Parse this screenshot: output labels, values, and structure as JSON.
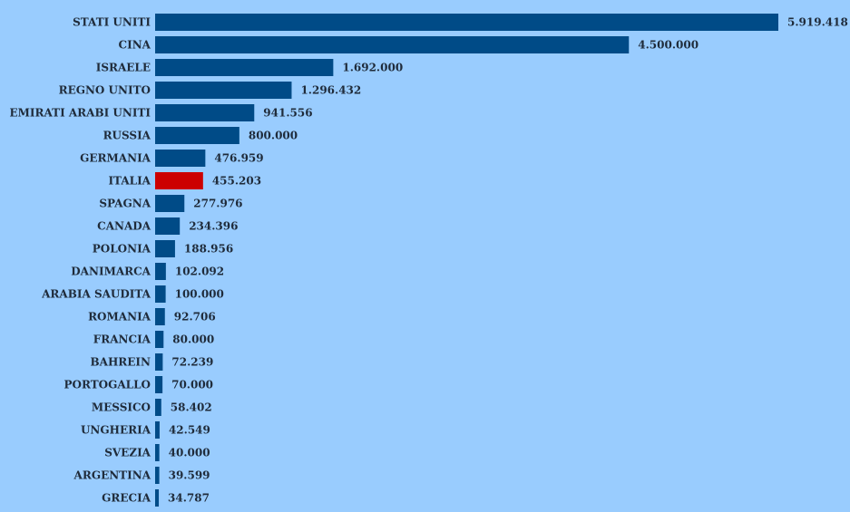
{
  "chart_data": {
    "type": "bar",
    "orientation": "horizontal",
    "title": "",
    "xlabel": "",
    "ylabel": "",
    "categories": [
      "STATI UNITI",
      "CINA",
      "ISRAELE",
      "REGNO UNITO",
      "EMIRATI ARABI UNITI",
      "RUSSIA",
      "GERMANIA",
      "ITALIA",
      "SPAGNA",
      "CANADA",
      "POLONIA",
      "DANIMARCA",
      "ARABIA SAUDITA",
      "ROMANIA",
      "FRANCIA",
      "BAHREIN",
      "PORTOGALLO",
      "MESSICO",
      "UNGHERIA",
      "SVEZIA",
      "ARGENTINA",
      "GRECIA"
    ],
    "values": [
      5919418,
      4500000,
      1692000,
      1296432,
      941556,
      800000,
      476959,
      455203,
      277976,
      234396,
      188956,
      102092,
      100000,
      92706,
      80000,
      72239,
      70000,
      58402,
      42549,
      40000,
      39599,
      34787
    ],
    "value_labels": [
      "5.919.418",
      "4.500.000",
      "1.692.000",
      "1.296.432",
      "941.556",
      "800.000",
      "476.959",
      "455.203",
      "277.976",
      "234.396",
      "188.956",
      "102.092",
      "100.000",
      "92.706",
      "80.000",
      "72.239",
      "70.000",
      "58.402",
      "42.549",
      "40.000",
      "39.599",
      "34.787"
    ],
    "xlim": [
      0,
      5919418
    ],
    "grid": false,
    "legend": "none",
    "colors": {
      "background": "#99ccfe",
      "bar": "#004b87",
      "highlight": "#cc0000",
      "text": "#1f2b3a"
    },
    "highlight_category": "ITALIA"
  }
}
